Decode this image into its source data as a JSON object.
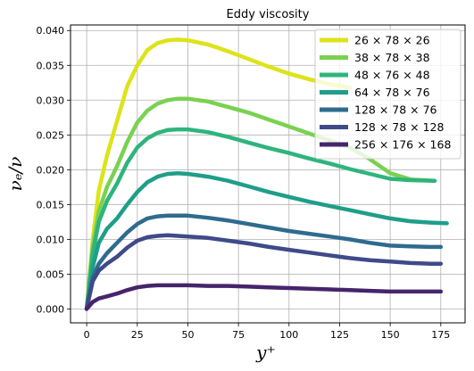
{
  "chart_data": {
    "type": "line",
    "title": "Eddy viscosity",
    "xlabel": "y⁺",
    "ylabel": "νₑ/ν",
    "xlim": [
      -8,
      187
    ],
    "ylim": [
      -0.002,
      0.0408
    ],
    "xticks": [
      0,
      25,
      50,
      75,
      100,
      125,
      150,
      175
    ],
    "xtick_labels": [
      "0",
      "25",
      "50",
      "75",
      "100",
      "125",
      "150",
      "175"
    ],
    "yticks": [
      0.0,
      0.005,
      0.01,
      0.015,
      0.02,
      0.025,
      0.03,
      0.035,
      0.04
    ],
    "ytick_labels": [
      "0.000",
      "0.005",
      "0.010",
      "0.015",
      "0.020",
      "0.025",
      "0.030",
      "0.035",
      "0.040"
    ],
    "grid": true,
    "legend_position": "top-right",
    "series": [
      {
        "name": "26 × 78 × 26",
        "color": "#dde318",
        "x": [
          0,
          3,
          6,
          10,
          15,
          20,
          25,
          30,
          35,
          40,
          45,
          50,
          60,
          70,
          80,
          90,
          100,
          110,
          120,
          130
        ],
        "y": [
          0.0,
          0.01,
          0.017,
          0.022,
          0.027,
          0.032,
          0.035,
          0.0372,
          0.0382,
          0.0386,
          0.0387,
          0.0386,
          0.038,
          0.037,
          0.0359,
          0.0348,
          0.0338,
          0.033,
          0.0323,
          0.0318
        ]
      },
      {
        "name": "38 × 78 × 38",
        "color": "#7ad151",
        "x": [
          0,
          3,
          6,
          10,
          15,
          20,
          25,
          30,
          35,
          40,
          45,
          50,
          60,
          70,
          80,
          90,
          100,
          110,
          120,
          130,
          140,
          150,
          160,
          172
        ],
        "y": [
          0.0,
          0.009,
          0.014,
          0.0175,
          0.0205,
          0.024,
          0.0268,
          0.0285,
          0.0295,
          0.03,
          0.0302,
          0.0302,
          0.0298,
          0.029,
          0.0282,
          0.0272,
          0.0262,
          0.0252,
          0.0242,
          0.0232,
          0.0215,
          0.0195,
          0.0186,
          0.0184
        ]
      },
      {
        "name": "48 × 76 × 48",
        "color": "#2fb47c",
        "x": [
          0,
          3,
          6,
          10,
          15,
          20,
          25,
          30,
          35,
          40,
          45,
          50,
          60,
          70,
          80,
          90,
          100,
          110,
          120,
          130,
          140,
          150,
          160,
          172
        ],
        "y": [
          0.0,
          0.008,
          0.0125,
          0.0155,
          0.018,
          0.021,
          0.0232,
          0.0245,
          0.0253,
          0.0257,
          0.0258,
          0.0258,
          0.0254,
          0.0247,
          0.0239,
          0.0231,
          0.0224,
          0.0216,
          0.0209,
          0.0201,
          0.0194,
          0.0187,
          0.0185,
          0.0184
        ]
      },
      {
        "name": "64 × 78 × 76",
        "color": "#1f9e89",
        "x": [
          0,
          3,
          6,
          10,
          15,
          20,
          25,
          30,
          35,
          40,
          45,
          50,
          60,
          70,
          80,
          90,
          100,
          110,
          120,
          130,
          140,
          150,
          160,
          170,
          178
        ],
        "y": [
          0.0,
          0.006,
          0.0095,
          0.0115,
          0.013,
          0.015,
          0.0168,
          0.0182,
          0.019,
          0.0194,
          0.0195,
          0.0194,
          0.019,
          0.0184,
          0.0176,
          0.0168,
          0.0161,
          0.0154,
          0.0148,
          0.0142,
          0.0136,
          0.013,
          0.0126,
          0.0124,
          0.0123
        ]
      },
      {
        "name": "128 × 78 × 76",
        "color": "#2f6b8e",
        "x": [
          0,
          3,
          6,
          10,
          15,
          20,
          25,
          30,
          35,
          40,
          45,
          50,
          60,
          70,
          80,
          90,
          100,
          110,
          120,
          130,
          140,
          150,
          160,
          170,
          175
        ],
        "y": [
          0.0,
          0.0045,
          0.0065,
          0.008,
          0.0095,
          0.011,
          0.0122,
          0.013,
          0.0133,
          0.0134,
          0.0134,
          0.0134,
          0.0131,
          0.0127,
          0.0122,
          0.0117,
          0.0112,
          0.0108,
          0.0104,
          0.01,
          0.0095,
          0.0091,
          0.009,
          0.0089,
          0.0089
        ]
      },
      {
        "name": "128 × 78 × 128",
        "color": "#3e4a89",
        "x": [
          0,
          3,
          6,
          10,
          15,
          20,
          25,
          30,
          35,
          40,
          45,
          50,
          60,
          70,
          80,
          90,
          100,
          110,
          120,
          130,
          140,
          150,
          160,
          170,
          175
        ],
        "y": [
          0.0,
          0.004,
          0.0055,
          0.0065,
          0.0075,
          0.0088,
          0.0098,
          0.0103,
          0.0105,
          0.0106,
          0.0105,
          0.0104,
          0.0102,
          0.0098,
          0.0094,
          0.0089,
          0.0085,
          0.0081,
          0.0077,
          0.0073,
          0.007,
          0.0068,
          0.0066,
          0.0065,
          0.0065
        ]
      },
      {
        "name": "256 × 176 × 168",
        "color": "#46246c",
        "x": [
          0,
          3,
          6,
          10,
          15,
          20,
          25,
          30,
          35,
          40,
          45,
          50,
          60,
          70,
          80,
          90,
          100,
          110,
          120,
          130,
          140,
          150,
          160,
          170,
          175
        ],
        "y": [
          0.0,
          0.001,
          0.0015,
          0.0018,
          0.0022,
          0.0027,
          0.0031,
          0.0033,
          0.0034,
          0.0034,
          0.0034,
          0.0034,
          0.0033,
          0.0033,
          0.0032,
          0.0031,
          0.003,
          0.0029,
          0.0028,
          0.0027,
          0.0026,
          0.0025,
          0.0025,
          0.0025,
          0.0025
        ]
      }
    ]
  }
}
